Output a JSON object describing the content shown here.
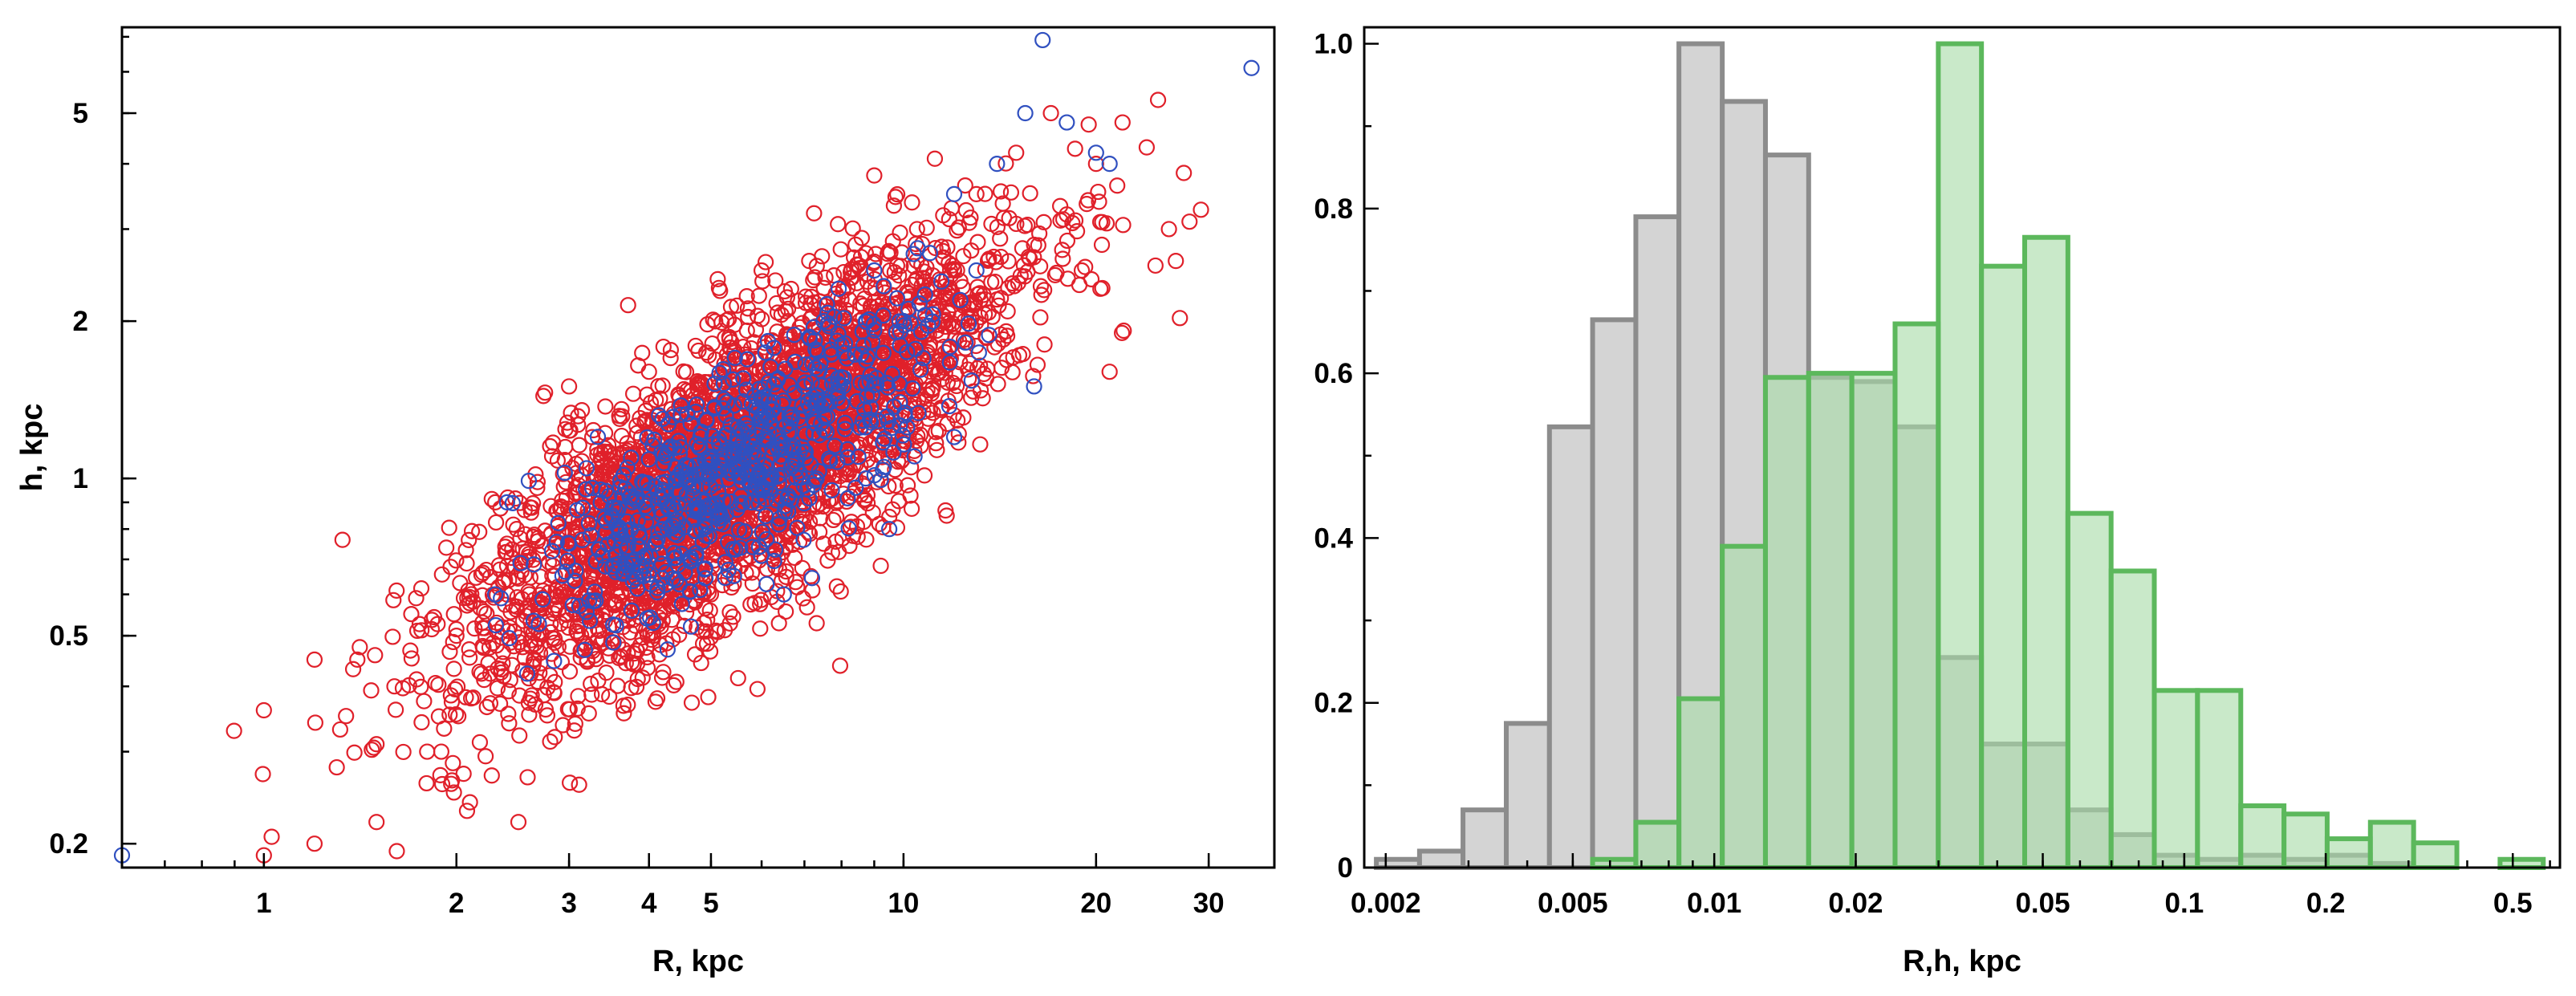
{
  "chart_data": [
    {
      "type": "scatter",
      "xlabel": "R, kpc",
      "ylabel": "h, kpc",
      "xscale": "log",
      "yscale": "log",
      "xlim": [
        0.6,
        38
      ],
      "ylim": [
        0.18,
        7.3
      ],
      "xticks": [
        {
          "value": 1,
          "label": "1"
        },
        {
          "value": 2,
          "label": "2"
        },
        {
          "value": 3,
          "label": "3"
        },
        {
          "value": 4,
          "label": "4"
        },
        {
          "value": 5,
          "label": "5"
        },
        {
          "value": 10,
          "label": "10"
        },
        {
          "value": 20,
          "label": "20"
        },
        {
          "value": 30,
          "label": "30"
        }
      ],
      "yticks": [
        {
          "value": 0.2,
          "label": "0.2"
        },
        {
          "value": 0.5,
          "label": "0.5"
        },
        {
          "value": 1,
          "label": "1"
        },
        {
          "value": 2,
          "label": "2"
        },
        {
          "value": 5,
          "label": "5"
        }
      ],
      "marker": "open-circle",
      "grid": false,
      "series": [
        {
          "color": "#e0202a",
          "points": [
            [
              1.0,
              0.36
            ],
            [
              1.0,
              0.19
            ],
            [
              1.2,
              0.2
            ],
            [
              1.3,
              0.28
            ],
            [
              1.2,
              0.45
            ],
            [
              1.4,
              0.45
            ],
            [
              1.5,
              0.31
            ],
            [
              1.5,
              0.22
            ],
            [
              1.6,
              0.4
            ],
            [
              1.7,
              0.55
            ],
            [
              1.8,
              0.3
            ],
            [
              1.9,
              0.26
            ],
            [
              2.0,
              0.5
            ],
            [
              2.1,
              0.24
            ],
            [
              2.2,
              0.66
            ],
            [
              2.3,
              0.9
            ],
            [
              2.5,
              0.22
            ],
            [
              2.4,
              0.75
            ],
            [
              2.6,
              0.6
            ],
            [
              2.8,
              0.42
            ],
            [
              3.0,
              0.85
            ],
            [
              3.2,
              0.55
            ],
            [
              3.5,
              0.7
            ],
            [
              3.6,
              1.3
            ],
            [
              4.0,
              0.9
            ],
            [
              4.5,
              1.1
            ],
            [
              5.0,
              1.2
            ],
            [
              5.5,
              0.8
            ],
            [
              6.0,
              1.5
            ],
            [
              6.5,
              1.1
            ],
            [
              7.0,
              1.8
            ],
            [
              7.5,
              1.3
            ],
            [
              8.0,
              2.2
            ],
            [
              8.5,
              1.6
            ],
            [
              9.0,
              2.6
            ],
            [
              10.0,
              2.0
            ],
            [
              10.5,
              3.0
            ],
            [
              11.0,
              1.8
            ],
            [
              12.0,
              2.5
            ],
            [
              13.0,
              3.5
            ],
            [
              14.0,
              2.2
            ],
            [
              15.0,
              4.2
            ],
            [
              16.0,
              2.8
            ],
            [
              17.0,
              5.0
            ],
            [
              18.0,
              3.2
            ],
            [
              19.0,
              2.5
            ],
            [
              20.0,
              4.0
            ],
            [
              21.0,
              1.6
            ],
            [
              22.0,
              4.8
            ],
            [
              24.0,
              4.3
            ],
            [
              25.0,
              5.3
            ],
            [
              26.0,
              3.0
            ],
            [
              28.0,
              3.1
            ],
            [
              4.0,
              1.6
            ],
            [
              5.0,
              0.6
            ],
            [
              7.5,
              0.75
            ],
            [
              9.0,
              3.8
            ],
            [
              3.0,
              1.5
            ],
            [
              6.0,
              2.5
            ]
          ]
        },
        {
          "color": "#3050c0",
          "points": [
            [
              0.6,
              0.19
            ],
            [
              16.5,
              6.9
            ],
            [
              35.0,
              6.1
            ],
            [
              15.5,
              5.0
            ],
            [
              18.0,
              4.8
            ],
            [
              20.0,
              4.2
            ],
            [
              21.0,
              4.0
            ],
            [
              14.0,
              4.0
            ],
            [
              12.0,
              3.5
            ],
            [
              9.0,
              2.5
            ],
            [
              10.0,
              2.0
            ],
            [
              8.0,
              1.8
            ],
            [
              7.0,
              1.5
            ],
            [
              6.0,
              1.3
            ],
            [
              5.5,
              1.2
            ],
            [
              5.0,
              1.1
            ],
            [
              4.5,
              1.0
            ],
            [
              4.0,
              0.95
            ],
            [
              3.5,
              0.85
            ],
            [
              3.0,
              0.75
            ],
            [
              2.4,
              0.9
            ],
            [
              2.3,
              0.6
            ],
            [
              6.5,
              0.6
            ],
            [
              8.5,
              1.1
            ],
            [
              9.5,
              0.8
            ],
            [
              13.0,
              2.5
            ],
            [
              16.0,
              1.5
            ],
            [
              11.0,
              2.7
            ],
            [
              7.5,
              2.0
            ],
            [
              4.2,
              1.3
            ],
            [
              3.8,
              0.7
            ],
            [
              5.8,
              0.9
            ],
            [
              12.0,
              1.2
            ]
          ]
        }
      ]
    },
    {
      "type": "histogram",
      "xlabel": "R,h, kpc",
      "ylabel": "",
      "xscale": "log",
      "xlim": [
        0.0018,
        0.63
      ],
      "ylim": [
        0,
        1.02
      ],
      "xticks": [
        {
          "value": 0.002,
          "label": "0.002"
        },
        {
          "value": 0.005,
          "label": "0.005"
        },
        {
          "value": 0.01,
          "label": "0.01"
        },
        {
          "value": 0.02,
          "label": "0.02"
        },
        {
          "value": 0.05,
          "label": "0.05"
        },
        {
          "value": 0.1,
          "label": "0.1"
        },
        {
          "value": 0.2,
          "label": "0.2"
        },
        {
          "value": 0.5,
          "label": "0.5"
        }
      ],
      "yticks": [
        {
          "value": 0,
          "label": "0"
        },
        {
          "value": 0.2,
          "label": "0.2"
        },
        {
          "value": 0.4,
          "label": "0.4"
        },
        {
          "value": 0.6,
          "label": "0.6"
        },
        {
          "value": 0.8,
          "label": "0.8"
        },
        {
          "value": 1.0,
          "label": "1.0"
        }
      ],
      "grid": false,
      "series": [
        {
          "fill": "#c8c8c8",
          "stroke": "#8c8c8c",
          "bins": [
            [
              0.00191,
              0.00236,
              0.01
            ],
            [
              0.00236,
              0.00292,
              0.02
            ],
            [
              0.00292,
              0.00361,
              0.07
            ],
            [
              0.00361,
              0.00446,
              0.175
            ],
            [
              0.00446,
              0.00551,
              0.535
            ],
            [
              0.00551,
              0.00681,
              0.665
            ],
            [
              0.00681,
              0.00841,
              0.79
            ],
            [
              0.00841,
              0.0104,
              1.0
            ],
            [
              0.0104,
              0.01285,
              0.93
            ],
            [
              0.01285,
              0.01588,
              0.865
            ],
            [
              0.01588,
              0.01962,
              0.595
            ],
            [
              0.01962,
              0.02425,
              0.59
            ],
            [
              0.02425,
              0.02997,
              0.535
            ],
            [
              0.02997,
              0.03703,
              0.255
            ],
            [
              0.03703,
              0.04576,
              0.15
            ],
            [
              0.04576,
              0.05655,
              0.15
            ],
            [
              0.05655,
              0.06988,
              0.07
            ],
            [
              0.06988,
              0.08635,
              0.04
            ],
            [
              0.08635,
              0.1067,
              0.015
            ],
            [
              0.1067,
              0.1319,
              0.01
            ],
            [
              0.1319,
              0.163,
              0.015
            ],
            [
              0.163,
              0.2014,
              0.01
            ],
            [
              0.2014,
              0.2489,
              0.015
            ],
            [
              0.2489,
              0.3076,
              0.005
            ]
          ]
        },
        {
          "fill": "#a8dca8",
          "stroke": "#5cb85c",
          "bins": [
            [
              0.00551,
              0.00681,
              0.01
            ],
            [
              0.00681,
              0.00841,
              0.055
            ],
            [
              0.00841,
              0.0104,
              0.205
            ],
            [
              0.0104,
              0.01285,
              0.39
            ],
            [
              0.01285,
              0.01588,
              0.595
            ],
            [
              0.01588,
              0.01962,
              0.6
            ],
            [
              0.01962,
              0.02425,
              0.6
            ],
            [
              0.02425,
              0.02997,
              0.66
            ],
            [
              0.02997,
              0.03703,
              1.0
            ],
            [
              0.03703,
              0.04576,
              0.73
            ],
            [
              0.04576,
              0.05655,
              0.765
            ],
            [
              0.05655,
              0.06988,
              0.43
            ],
            [
              0.06988,
              0.08635,
              0.36
            ],
            [
              0.08635,
              0.1067,
              0.215
            ],
            [
              0.1067,
              0.1319,
              0.215
            ],
            [
              0.1319,
              0.163,
              0.075
            ],
            [
              0.163,
              0.2014,
              0.065
            ],
            [
              0.2014,
              0.2489,
              0.035
            ],
            [
              0.2489,
              0.3076,
              0.055
            ],
            [
              0.3076,
              0.3802,
              0.03
            ],
            [
              0.4698,
              0.5806,
              0.01
            ]
          ]
        }
      ]
    }
  ]
}
